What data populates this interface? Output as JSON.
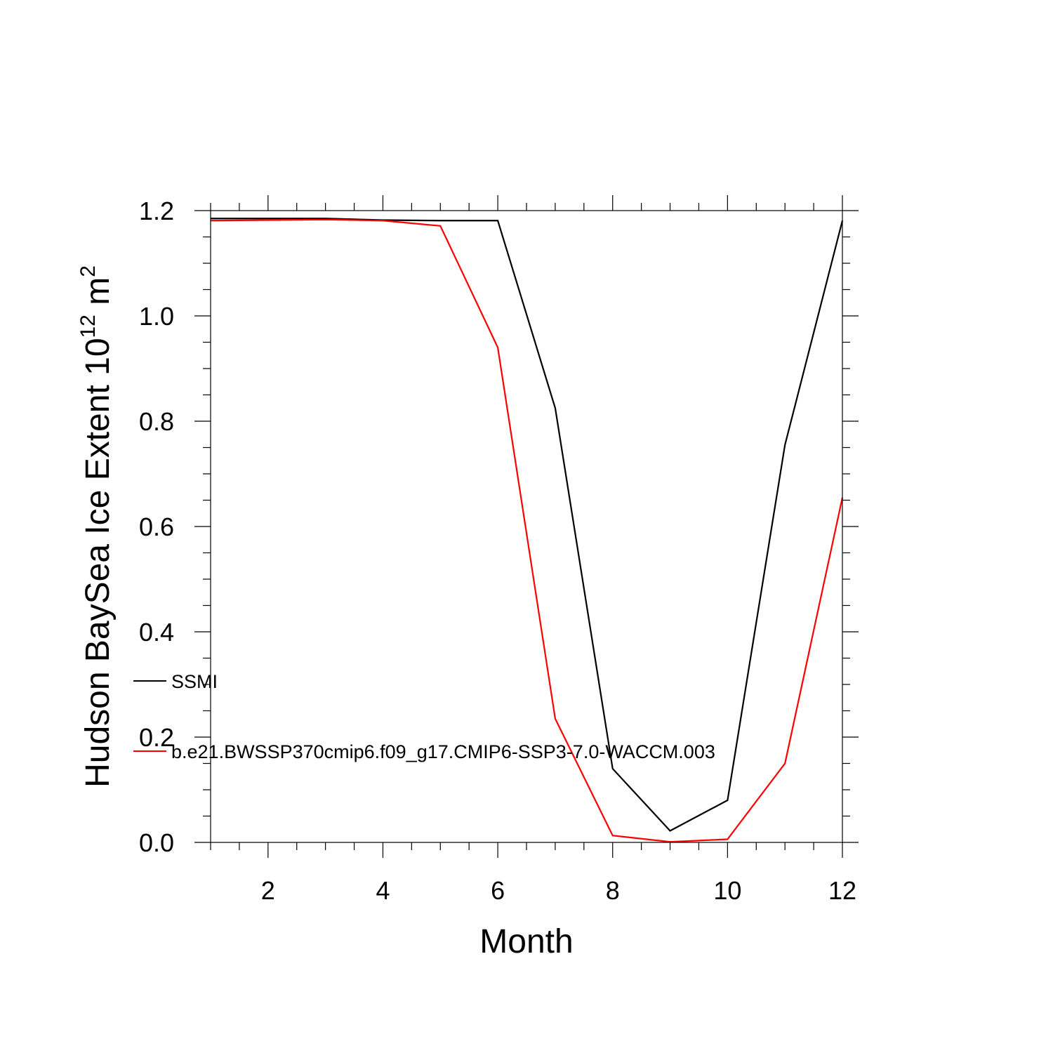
{
  "chart_data": {
    "type": "line",
    "xlabel": "Month",
    "ylabel": {
      "prefix": "Hudson BaySea Ice Extent 10",
      "exponent": "12",
      "unit": " m",
      "unit_exponent": "2"
    },
    "xlim": [
      1,
      12
    ],
    "ylim": [
      0,
      1.2
    ],
    "x_ticks": [
      2,
      4,
      6,
      8,
      10,
      12
    ],
    "y_ticks": [
      0.0,
      0.2,
      0.4,
      0.6,
      0.8,
      1.0,
      1.2
    ],
    "y_tick_labels": [
      "0.0",
      "0.2",
      "0.4",
      "0.6",
      "0.8",
      "1.0",
      "1.2"
    ],
    "grid": false,
    "legend_placement": "inside-left",
    "x": [
      1,
      2,
      3,
      4,
      5,
      6,
      7,
      8,
      9,
      10,
      11,
      12
    ],
    "series": [
      {
        "name": "SSMI",
        "color": "#000000",
        "values": [
          1.185,
          1.185,
          1.185,
          1.182,
          1.181,
          1.181,
          0.825,
          0.14,
          0.022,
          0.08,
          0.755,
          1.181
        ]
      },
      {
        "name": "b.e21.BWSSP370cmip6.f09_g17.CMIP6-SSP3-7.0-WACCM.003",
        "color": "#ff0000",
        "values": [
          1.181,
          1.182,
          1.183,
          1.181,
          1.171,
          0.94,
          0.235,
          0.013,
          0.001,
          0.006,
          0.15,
          0.655
        ]
      }
    ]
  }
}
